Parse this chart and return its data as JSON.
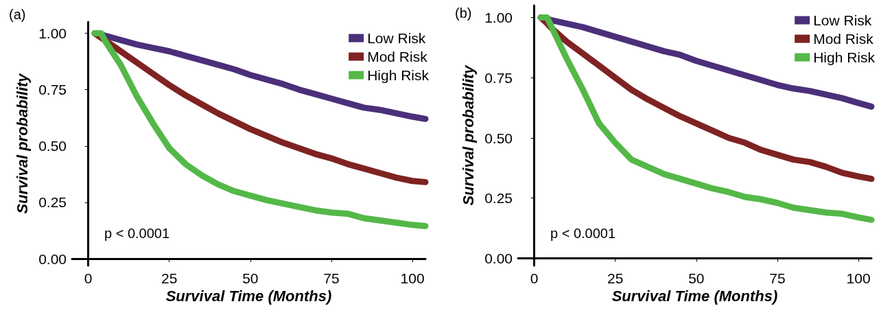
{
  "chart_data": [
    {
      "type": "line",
      "title": "(a)",
      "xlabel": "Survival Time (Months)",
      "ylabel": "Survival probability",
      "annotations": [
        "p < 0.0001"
      ],
      "x": [
        2,
        4,
        5,
        10,
        15,
        20,
        25,
        30,
        35,
        40,
        45,
        50,
        55,
        60,
        65,
        70,
        75,
        80,
        85,
        90,
        95,
        100,
        104
      ],
      "series": [
        {
          "name": "Low Risk",
          "color": "#4b2f7a",
          "values": [
            1.0,
            0.995,
            0.99,
            0.97,
            0.95,
            0.935,
            0.92,
            0.9,
            0.88,
            0.86,
            0.84,
            0.815,
            0.795,
            0.775,
            0.75,
            0.73,
            0.71,
            0.69,
            0.67,
            0.66,
            0.645,
            0.63,
            0.62
          ]
        },
        {
          "name": "Mod Risk",
          "color": "#7f2222",
          "values": [
            1.0,
            0.98,
            0.97,
            0.92,
            0.87,
            0.82,
            0.77,
            0.725,
            0.685,
            0.645,
            0.61,
            0.575,
            0.545,
            0.515,
            0.49,
            0.465,
            0.445,
            0.42,
            0.4,
            0.38,
            0.36,
            0.345,
            0.34
          ]
        },
        {
          "name": "High Risk",
          "color": "#54b848",
          "values": [
            1.0,
            1.0,
            0.97,
            0.86,
            0.72,
            0.6,
            0.49,
            0.42,
            0.37,
            0.33,
            0.3,
            0.28,
            0.26,
            0.245,
            0.23,
            0.215,
            0.205,
            0.2,
            0.18,
            0.17,
            0.16,
            0.15,
            0.145
          ]
        }
      ],
      "xlim": [
        -5,
        104
      ],
      "xticks": [
        0,
        25,
        50,
        75,
        100
      ],
      "ylim": [
        -0.03,
        1.05
      ],
      "yticks": [
        {
          "value": 0,
          "label": "0.00"
        },
        {
          "value": 0.25,
          "label": "0.25"
        },
        {
          "value": 0.5,
          "label": "0.50"
        },
        {
          "value": 0.75,
          "label": "0.75"
        },
        {
          "value": 1,
          "label": "1.00"
        }
      ],
      "grid": false,
      "legend": "top right",
      "marker": "none",
      "line_style": "solid"
    },
    {
      "type": "line",
      "title": "(b)",
      "xlabel": "Survival Time (Months)",
      "ylabel": "Survival probability",
      "annotations": [
        "p < 0.0001"
      ],
      "x": [
        2,
        4,
        5,
        10,
        15,
        20,
        25,
        30,
        35,
        40,
        45,
        50,
        55,
        60,
        65,
        70,
        75,
        80,
        85,
        90,
        95,
        100,
        104
      ],
      "series": [
        {
          "name": "Low Risk",
          "color": "#4b2f7a",
          "values": [
            1.0,
            0.995,
            0.99,
            0.975,
            0.96,
            0.94,
            0.92,
            0.9,
            0.88,
            0.86,
            0.845,
            0.82,
            0.8,
            0.78,
            0.76,
            0.74,
            0.72,
            0.705,
            0.695,
            0.68,
            0.665,
            0.645,
            0.63
          ]
        },
        {
          "name": "Mod Risk",
          "color": "#7f2222",
          "values": [
            1.0,
            0.975,
            0.96,
            0.9,
            0.85,
            0.8,
            0.75,
            0.7,
            0.66,
            0.625,
            0.59,
            0.56,
            0.53,
            0.5,
            0.48,
            0.45,
            0.43,
            0.41,
            0.4,
            0.38,
            0.355,
            0.34,
            0.33
          ]
        },
        {
          "name": "High Risk",
          "color": "#54b848",
          "values": [
            1.0,
            1.0,
            0.97,
            0.83,
            0.7,
            0.56,
            0.48,
            0.41,
            0.38,
            0.35,
            0.33,
            0.31,
            0.29,
            0.275,
            0.255,
            0.245,
            0.23,
            0.21,
            0.2,
            0.19,
            0.185,
            0.17,
            0.16
          ]
        }
      ],
      "xlim": [
        -5,
        104
      ],
      "xticks": [
        0,
        25,
        50,
        75,
        100
      ],
      "ylim": [
        -0.03,
        1.05
      ],
      "yticks": [
        {
          "value": 0,
          "label": "0.00"
        },
        {
          "value": 0.25,
          "label": "0.25"
        },
        {
          "value": 0.5,
          "label": "0.50"
        },
        {
          "value": 0.75,
          "label": "0.75"
        },
        {
          "value": 1,
          "label": "1.00"
        }
      ],
      "grid": false,
      "legend": "top right",
      "marker": "none",
      "line_style": "solid"
    }
  ]
}
